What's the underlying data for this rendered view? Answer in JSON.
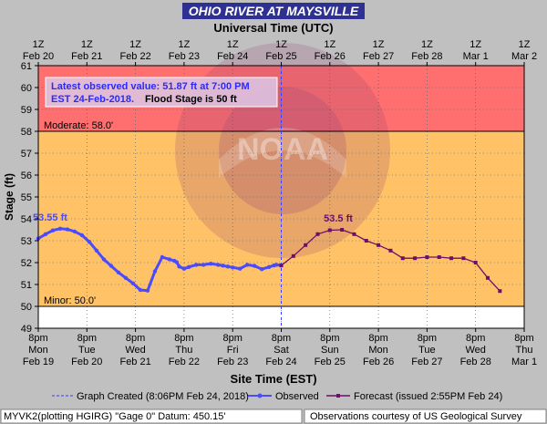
{
  "chart_data": {
    "type": "line",
    "title": "OHIO RIVER AT MAYSVILLE",
    "top_axis_title": "Universal Time (UTC)",
    "top_axis_ticks": [
      [
        "1Z",
        "Feb 20"
      ],
      [
        "1Z",
        "Feb 21"
      ],
      [
        "1Z",
        "Feb 22"
      ],
      [
        "1Z",
        "Feb 23"
      ],
      [
        "1Z",
        "Feb 24"
      ],
      [
        "1Z",
        "Feb 25"
      ],
      [
        "1Z",
        "Feb 26"
      ],
      [
        "1Z",
        "Feb 27"
      ],
      [
        "1Z",
        "Feb 28"
      ],
      [
        "1Z",
        "Mar 1"
      ],
      [
        "1Z",
        "Mar 2"
      ]
    ],
    "xlabel": "Site Time (EST)",
    "ylabel": "Stage (ft)",
    "x_ticks": [
      [
        "8pm",
        "Mon",
        "Feb 19"
      ],
      [
        "8pm",
        "Tue",
        "Feb 20"
      ],
      [
        "8pm",
        "Wed",
        "Feb 21"
      ],
      [
        "8pm",
        "Thu",
        "Feb 22"
      ],
      [
        "8pm",
        "Fri",
        "Feb 23"
      ],
      [
        "8pm",
        "Sat",
        "Feb 24"
      ],
      [
        "8pm",
        "Sun",
        "Feb 25"
      ],
      [
        "8pm",
        "Mon",
        "Feb 26"
      ],
      [
        "8pm",
        "Tue",
        "Feb 27"
      ],
      [
        "8pm",
        "Wed",
        "Feb 28"
      ],
      [
        "8pm",
        "Thu",
        "Mar 1"
      ]
    ],
    "x_unit": "days after Feb 19 8pm EST",
    "xlim": [
      0,
      10
    ],
    "ylim": [
      49,
      61
    ],
    "y_ticks": [
      49,
      50,
      51,
      52,
      53,
      54,
      55,
      56,
      57,
      58,
      59,
      60,
      61
    ],
    "bands": [
      {
        "from": 49,
        "to": 50,
        "color": "#ffffff"
      },
      {
        "from": 50,
        "to": 58,
        "color": "#ffc266"
      },
      {
        "from": 58,
        "to": 61,
        "color": "#ff6f6f"
      }
    ],
    "threshold_lines": [
      {
        "value": 58,
        "label": "Moderate: 58.0'"
      },
      {
        "value": 50,
        "label": "Minor: 50.0'"
      }
    ],
    "annotation": {
      "line1": "Latest observed value: 51.87 ft at 7:00 PM",
      "line2a": "EST 24-Feb-2018.",
      "line2b": "Flood Stage is 50 ft"
    },
    "watermark": "NOAA",
    "series": [
      {
        "name": "Observed",
        "color": "#4a4aff",
        "peak_label": "53.55 ft",
        "x": [
          0,
          0.15,
          0.3,
          0.45,
          0.6,
          0.75,
          0.9,
          1.05,
          1.2,
          1.35,
          1.5,
          1.65,
          1.8,
          1.95,
          2.1,
          2.25,
          2.4,
          2.55,
          2.7,
          2.8,
          2.85,
          2.9,
          3.0,
          3.1,
          3.25,
          3.4,
          3.55,
          3.7,
          3.8,
          3.9,
          4.0,
          4.15,
          4.3,
          4.45,
          4.6,
          4.75,
          4.85,
          4.9,
          5.0
        ],
        "y": [
          53.1,
          53.3,
          53.47,
          53.55,
          53.52,
          53.42,
          53.25,
          52.95,
          52.55,
          52.15,
          51.85,
          51.55,
          51.3,
          51.05,
          50.75,
          50.72,
          51.6,
          52.25,
          52.15,
          52.08,
          52.02,
          51.82,
          51.72,
          51.8,
          51.9,
          51.9,
          51.95,
          51.9,
          51.86,
          51.82,
          51.78,
          51.72,
          51.9,
          51.85,
          51.7,
          51.8,
          51.87,
          51.9,
          51.87
        ]
      },
      {
        "name": "Forecast (issued 2:55PM Feb 24)",
        "color": "#6b0f6b",
        "peak_label": "53.5 ft",
        "x": [
          5.0,
          5.25,
          5.5,
          5.75,
          6.0,
          6.25,
          6.5,
          6.75,
          7.0,
          7.25,
          7.5,
          7.75,
          8.0,
          8.25,
          8.5,
          8.75,
          9.0,
          9.25,
          9.5
        ],
        "y": [
          51.87,
          52.3,
          52.8,
          53.3,
          53.48,
          53.5,
          53.3,
          53.0,
          52.8,
          52.55,
          52.2,
          52.2,
          52.25,
          52.25,
          52.2,
          52.2,
          52.0,
          51.3,
          50.7
        ]
      }
    ],
    "graph_created_x": 5.0,
    "legend": {
      "created": "Graph Created (8:06PM Feb 24, 2018)",
      "observed": "Observed",
      "forecast": "Forecast (issued 2:55PM Feb 24)"
    },
    "footer_left": "MYVK2(plotting HGIRG) \"Gage 0\" Datum: 450.15'",
    "footer_right": "Observations courtesy of US Geological Survey"
  }
}
